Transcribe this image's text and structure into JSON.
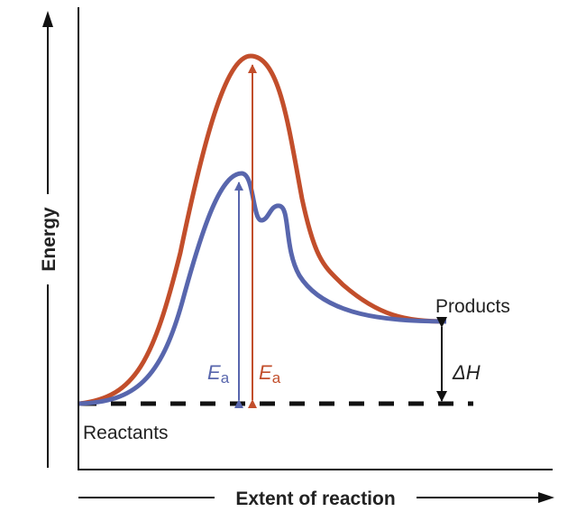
{
  "axes": {
    "y_label": "Energy",
    "x_label": "Extent of reaction"
  },
  "labels": {
    "reactants": "Reactants",
    "products": "Products",
    "ea_symbol": "E",
    "ea_subscript": "a",
    "delta_h": "ΔH"
  },
  "colors": {
    "uncatalyzed": "#c24e2b",
    "catalyzed": "#5866ad",
    "axis": "#111111"
  }
}
